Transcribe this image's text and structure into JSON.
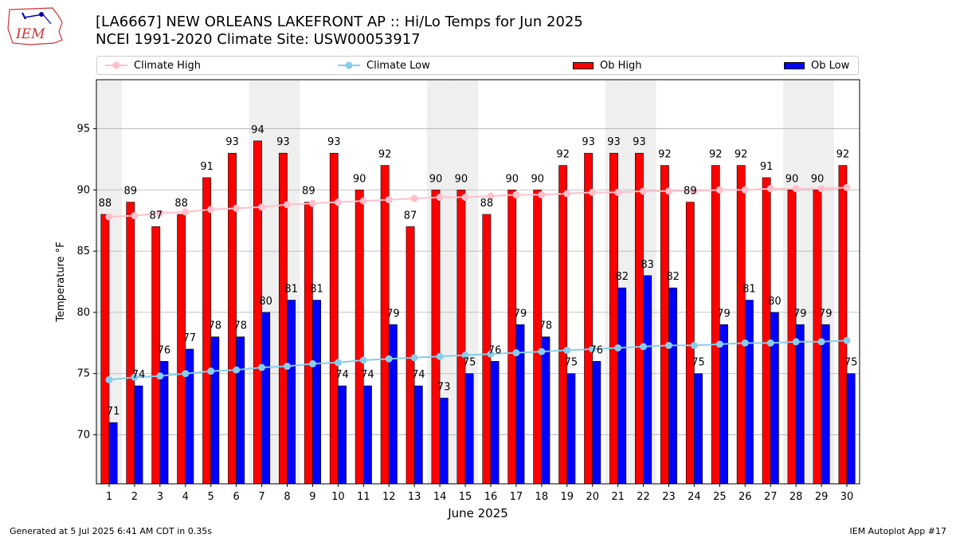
{
  "header": {
    "title_line1": "[LA6667] NEW ORLEANS LAKEFRONT AP :: Hi/Lo Temps for Jun 2025",
    "title_line2": "NCEI 1991-2020 Climate Site: USW00053917",
    "logo_text": "IEM"
  },
  "legend": {
    "climate_high": "Climate High",
    "climate_low": "Climate Low",
    "ob_high": "Ob High",
    "ob_low": "Ob Low"
  },
  "footer": {
    "left": "Generated at 5 Jul 2025 6:41 AM CDT in 0.35s",
    "right": "IEM Autoplot App #17"
  },
  "colors": {
    "ob_high": "#ff0000",
    "ob_low": "#0000ff",
    "climate_high": "#ffc0cb",
    "climate_low": "#87ceeb",
    "weekend_band": "#efefef"
  },
  "chart_data": {
    "type": "bar",
    "xlabel": "June 2025",
    "ylabel": "Temperature °F",
    "ylim": [
      66,
      99
    ],
    "yticks": [
      70,
      75,
      80,
      85,
      90,
      95
    ],
    "grid": true,
    "legend_position": "top",
    "categories": [
      "1",
      "2",
      "3",
      "4",
      "5",
      "6",
      "7",
      "8",
      "9",
      "10",
      "11",
      "12",
      "13",
      "14",
      "15",
      "16",
      "17",
      "18",
      "19",
      "20",
      "21",
      "22",
      "23",
      "24",
      "25",
      "26",
      "27",
      "28",
      "29",
      "30"
    ],
    "shaded_days": [
      1,
      7,
      8,
      14,
      15,
      21,
      22,
      28,
      29
    ],
    "series": [
      {
        "name": "Ob High",
        "kind": "bar",
        "values": [
          88,
          89,
          87,
          88,
          91,
          93,
          94,
          93,
          89,
          93,
          90,
          92,
          87,
          90,
          90,
          88,
          90,
          90,
          92,
          93,
          93,
          93,
          92,
          89,
          92,
          92,
          91,
          90,
          90,
          92
        ]
      },
      {
        "name": "Ob Low",
        "kind": "bar",
        "values": [
          71,
          74,
          76,
          77,
          78,
          78,
          80,
          81,
          81,
          74,
          74,
          79,
          74,
          73,
          75,
          76,
          79,
          78,
          75,
          76,
          82,
          83,
          82,
          75,
          79,
          81,
          80,
          79,
          79,
          75
        ]
      },
      {
        "name": "Climate High",
        "kind": "line",
        "values": [
          87.8,
          87.9,
          88.1,
          88.2,
          88.4,
          88.5,
          88.6,
          88.8,
          88.9,
          89.0,
          89.1,
          89.2,
          89.3,
          89.4,
          89.4,
          89.5,
          89.6,
          89.6,
          89.7,
          89.8,
          89.8,
          89.9,
          89.9,
          89.9,
          90.0,
          90.0,
          90.1,
          90.1,
          90.1,
          90.2
        ]
      },
      {
        "name": "Climate Low",
        "kind": "line",
        "values": [
          74.5,
          74.7,
          74.8,
          75.0,
          75.2,
          75.3,
          75.5,
          75.6,
          75.8,
          75.9,
          76.1,
          76.2,
          76.3,
          76.4,
          76.5,
          76.6,
          76.7,
          76.8,
          76.9,
          77.0,
          77.1,
          77.2,
          77.3,
          77.3,
          77.4,
          77.5,
          77.5,
          77.6,
          77.6,
          77.7
        ]
      }
    ]
  }
}
